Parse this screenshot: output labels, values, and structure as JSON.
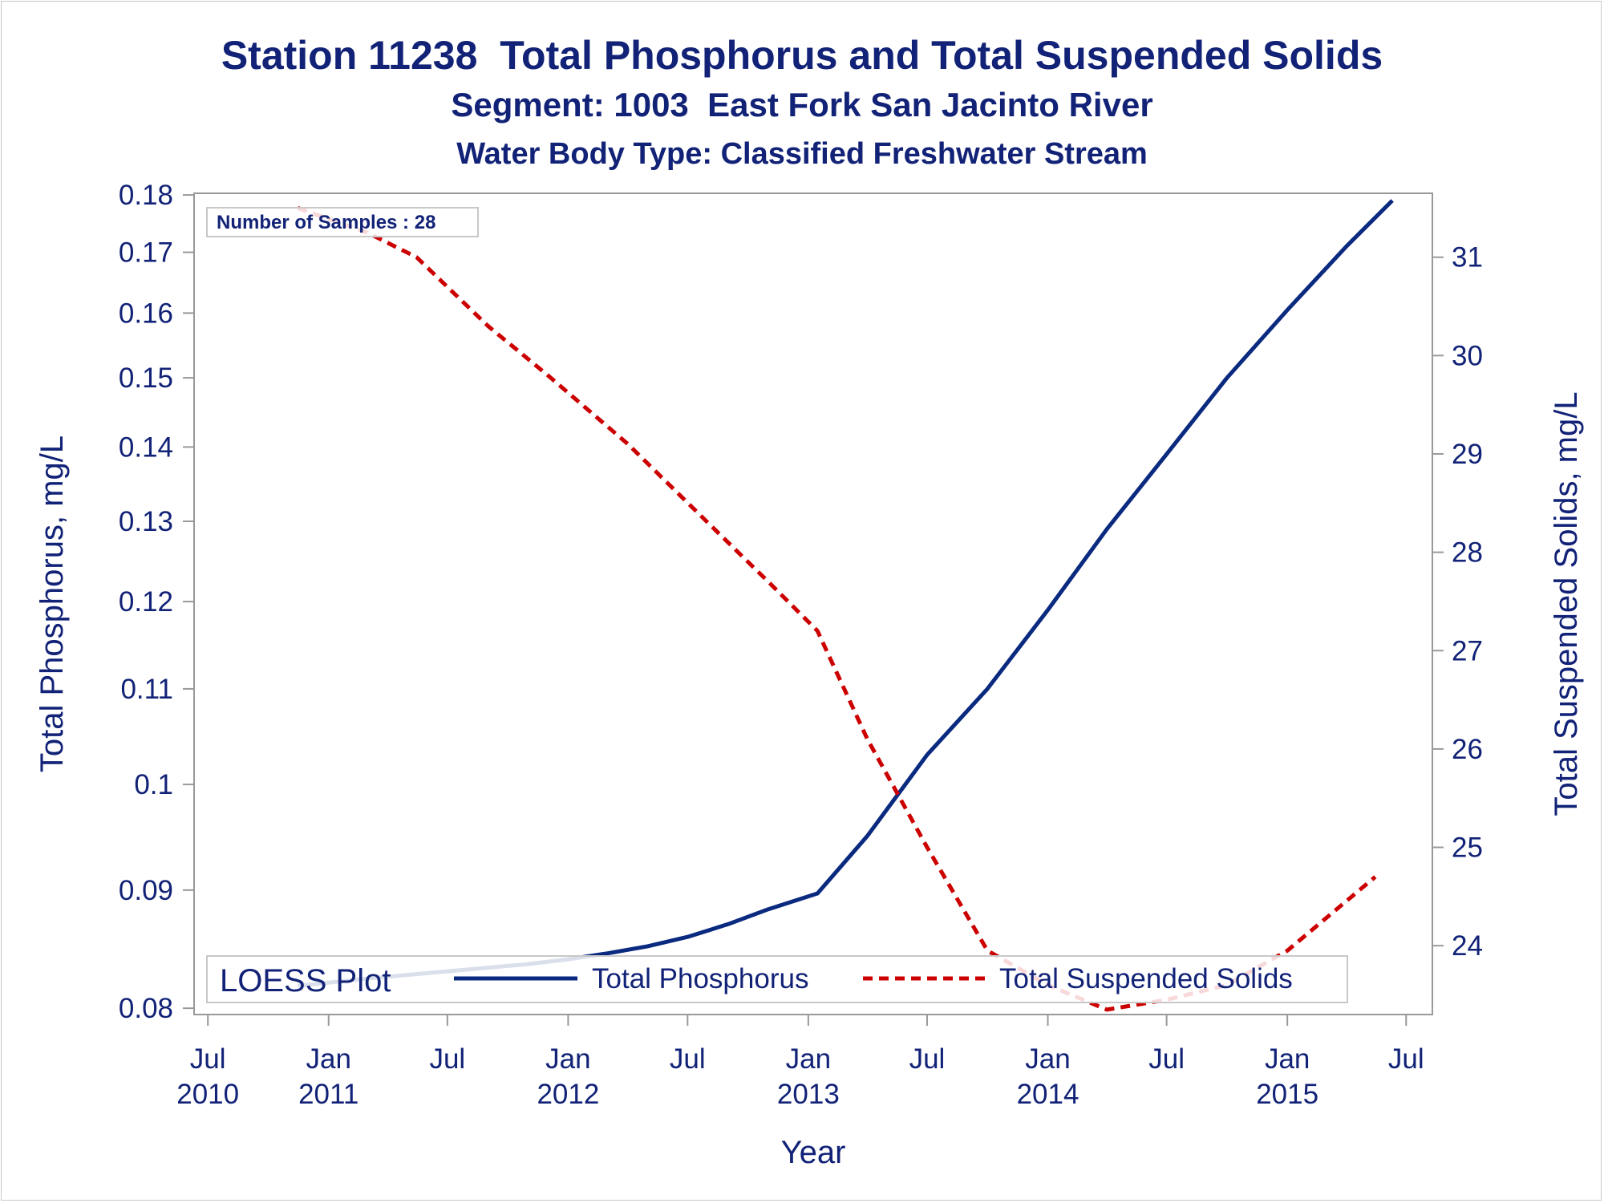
{
  "titles": {
    "line1": "Station 11238  Total Phosphorus and Total Suspended Solids",
    "line2": "Segment: 1003  East Fork San Jacinto River",
    "line3": "Water Body Type: Classified Freshwater Stream"
  },
  "colors": {
    "text": "#112277",
    "phosphorus": "#0a2a80",
    "tss": "#cc0000",
    "axis": "#999999"
  },
  "chart_data": {
    "type": "line",
    "xlabel": "Year",
    "ylabel": "Total Phosphorus, mg/L",
    "y2label": "Total Suspended Solids, mg/L",
    "y_scale": "log",
    "ylim": [
      0.0795,
      0.1803
    ],
    "y2lim": [
      23.3,
      31.65
    ],
    "xlim": [
      "2010-06-10",
      "2015-08-10"
    ],
    "x_ticks": [
      {
        "date": "2010-07-01",
        "label_top": "Jul",
        "label_bottom": "2010"
      },
      {
        "date": "2011-01-01",
        "label_top": "Jan",
        "label_bottom": "2011"
      },
      {
        "date": "2011-07-01",
        "label_top": "Jul",
        "label_bottom": ""
      },
      {
        "date": "2012-01-01",
        "label_top": "Jan",
        "label_bottom": "2012"
      },
      {
        "date": "2012-07-01",
        "label_top": "Jul",
        "label_bottom": ""
      },
      {
        "date": "2013-01-01",
        "label_top": "Jan",
        "label_bottom": "2013"
      },
      {
        "date": "2013-07-01",
        "label_top": "Jul",
        "label_bottom": ""
      },
      {
        "date": "2014-01-01",
        "label_top": "Jan",
        "label_bottom": "2014"
      },
      {
        "date": "2014-07-01",
        "label_top": "Jul",
        "label_bottom": ""
      },
      {
        "date": "2015-01-01",
        "label_top": "Jan",
        "label_bottom": "2015"
      },
      {
        "date": "2015-07-01",
        "label_top": "Jul",
        "label_bottom": ""
      }
    ],
    "y_ticks": [
      "0.08",
      "0.09",
      "0.1",
      "0.11",
      "0.12",
      "0.13",
      "0.14",
      "0.15",
      "0.16",
      "0.17",
      "0.18"
    ],
    "y2_ticks": [
      "24",
      "25",
      "26",
      "27",
      "28",
      "29",
      "30",
      "31"
    ],
    "series": [
      {
        "name": "Total Phosphorus",
        "axis": "left",
        "style": "solid",
        "points": [
          [
            "2010-11-15",
            0.0818
          ],
          [
            "2011-03-01",
            0.0824
          ],
          [
            "2011-07-01",
            0.083
          ],
          [
            "2011-11-01",
            0.0836
          ],
          [
            "2012-01-01",
            0.084
          ],
          [
            "2012-03-01",
            0.0845
          ],
          [
            "2012-05-01",
            0.0851
          ],
          [
            "2012-07-01",
            0.0859
          ],
          [
            "2012-09-01",
            0.087
          ],
          [
            "2012-11-01",
            0.0883
          ],
          [
            "2013-01-15",
            0.0897
          ],
          [
            "2013-04-01",
            0.095
          ],
          [
            "2013-07-01",
            0.103
          ],
          [
            "2013-10-01",
            0.11
          ],
          [
            "2014-01-01",
            0.119
          ],
          [
            "2014-04-01",
            0.129
          ],
          [
            "2014-07-01",
            0.139
          ],
          [
            "2014-10-01",
            0.15
          ],
          [
            "2015-01-01",
            0.1605
          ],
          [
            "2015-04-01",
            0.171
          ],
          [
            "2015-06-10",
            0.179
          ]
        ]
      },
      {
        "name": "Total Suspended Solids",
        "axis": "right",
        "style": "dashed",
        "points": [
          [
            "2010-11-15",
            31.5
          ],
          [
            "2011-03-01",
            31.25
          ],
          [
            "2011-05-15",
            31.0
          ],
          [
            "2011-09-01",
            30.3
          ],
          [
            "2011-12-01",
            29.8
          ],
          [
            "2012-04-01",
            29.1
          ],
          [
            "2012-08-01",
            28.3
          ],
          [
            "2012-11-01",
            27.7
          ],
          [
            "2013-01-15",
            27.2
          ],
          [
            "2013-04-01",
            26.1
          ],
          [
            "2013-07-01",
            25.0
          ],
          [
            "2013-10-01",
            23.95
          ],
          [
            "2014-01-01",
            23.6
          ],
          [
            "2014-04-01",
            23.35
          ],
          [
            "2014-07-01",
            23.45
          ],
          [
            "2014-10-01",
            23.6
          ],
          [
            "2015-01-01",
            23.95
          ],
          [
            "2015-05-15",
            24.7
          ]
        ]
      }
    ],
    "inset": "Number of Samples : 28",
    "legend": {
      "title": "LOESS Plot",
      "position": "bottom-left",
      "entries": [
        "Total Phosphorus",
        "Total Suspended Solids"
      ]
    },
    "grid": false
  }
}
